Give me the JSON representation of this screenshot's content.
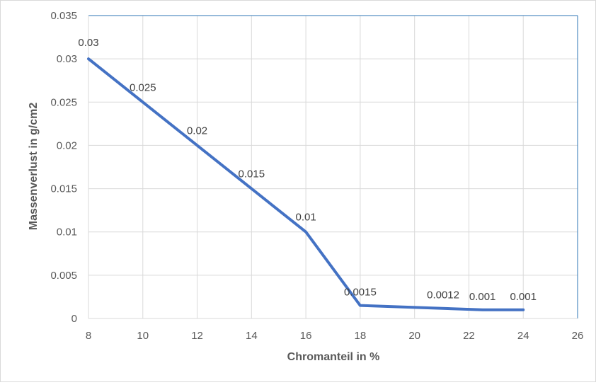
{
  "chart_data": {
    "type": "line",
    "title": "",
    "xlabel": "Chromanteil in %",
    "ylabel": "Massenverlust in g/cm2",
    "xlim": [
      8,
      26
    ],
    "ylim": [
      0,
      0.035
    ],
    "x_ticks": [
      8,
      10,
      12,
      14,
      16,
      18,
      20,
      22,
      24,
      26
    ],
    "x_tick_labels": [
      "8",
      "10",
      "12",
      "14",
      "16",
      "18",
      "20",
      "22",
      "24",
      "26"
    ],
    "y_ticks": [
      0,
      0.005,
      0.01,
      0.015,
      0.02,
      0.025,
      0.03,
      0.035
    ],
    "y_tick_labels": [
      "0",
      "0.005",
      "0.01",
      "0.015",
      "0.02",
      "0.025",
      "0.03",
      "0.035"
    ],
    "grid": true,
    "legend": "none",
    "series_color": "#4472c4",
    "series": [
      {
        "x": [
          8,
          10,
          12,
          14,
          16,
          18,
          22.5,
          24
        ],
        "y": [
          0.03,
          0.025,
          0.02,
          0.015,
          0.01,
          0.0015,
          0.001,
          0.001
        ],
        "labels": [
          "0.03",
          "0.025",
          "0.02",
          "0.015",
          "0.01",
          "0.0015",
          "0.001",
          "0.001"
        ]
      }
    ],
    "annotations": [
      {
        "text": "0.0012",
        "x": 21,
        "y": 0.0012
      }
    ]
  }
}
